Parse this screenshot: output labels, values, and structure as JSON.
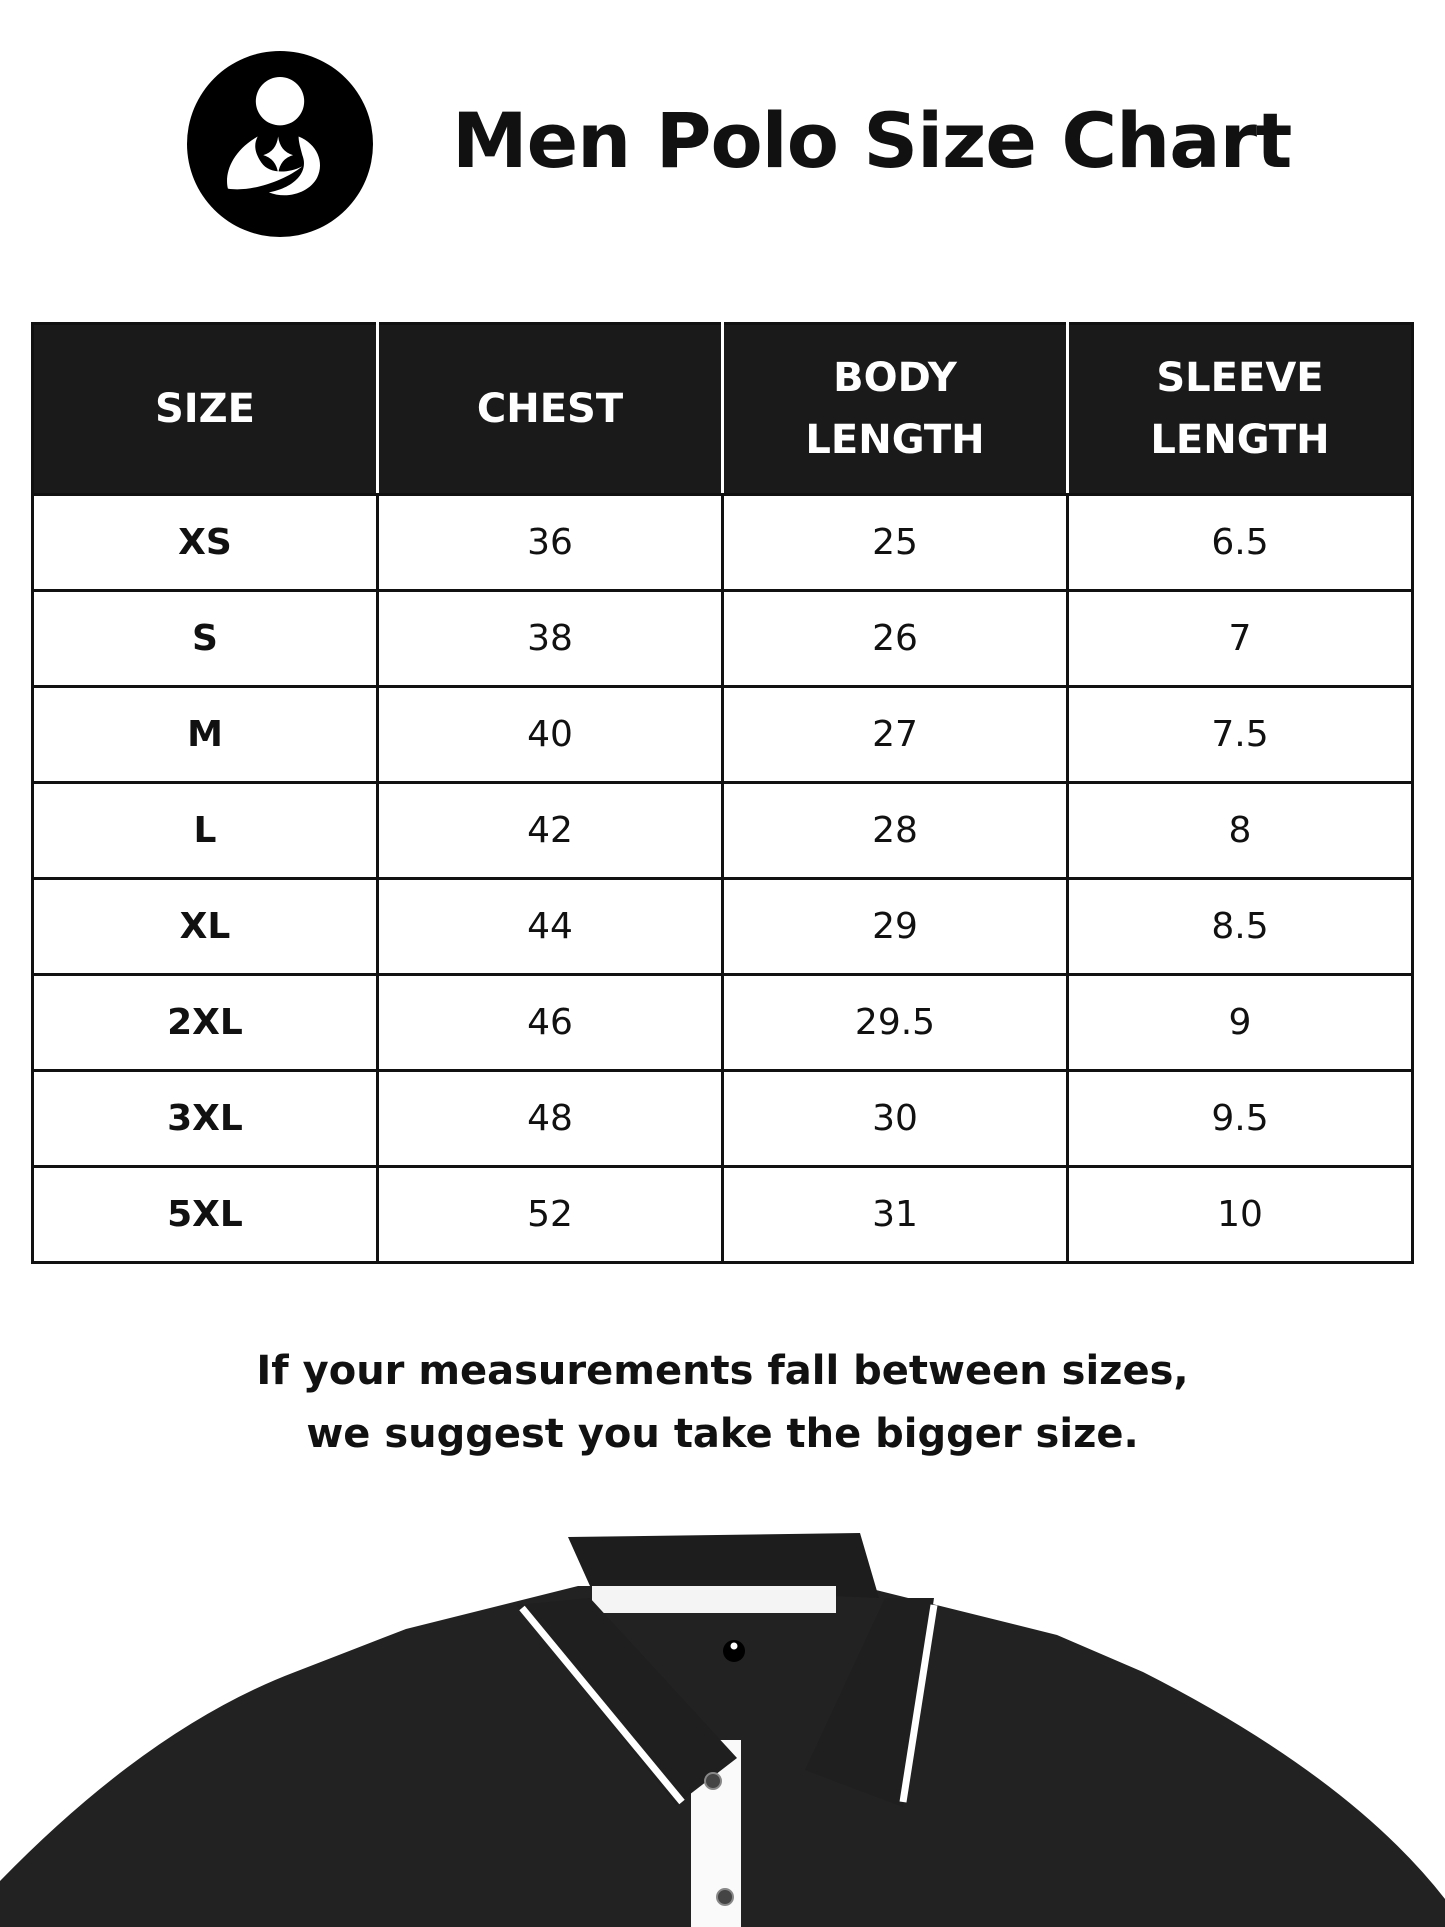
{
  "header": {
    "title": "Men Polo Size Chart",
    "logo": "mother-and-child-logo-icon"
  },
  "table": {
    "columns": [
      "SIZE",
      "CHEST",
      "BODY LENGTH",
      "SLEEVE LENGTH"
    ],
    "rows": [
      [
        "XS",
        "36",
        "25",
        "6.5"
      ],
      [
        "S",
        "38",
        "26",
        "7"
      ],
      [
        "M",
        "40",
        "27",
        "7.5"
      ],
      [
        "L",
        "42",
        "28",
        "8"
      ],
      [
        "XL",
        "44",
        "29",
        "8.5"
      ],
      [
        "2XL",
        "46",
        "29.5",
        "9"
      ],
      [
        "3XL",
        "48",
        "30",
        "9.5"
      ],
      [
        "5XL",
        "52",
        "31",
        "10"
      ]
    ]
  },
  "note": {
    "line1": "If your measurements fall between sizes,",
    "line2": "we suggest you take the bigger size."
  },
  "colors": {
    "header_bg": "#1a1a1a",
    "polo": "#222222"
  }
}
